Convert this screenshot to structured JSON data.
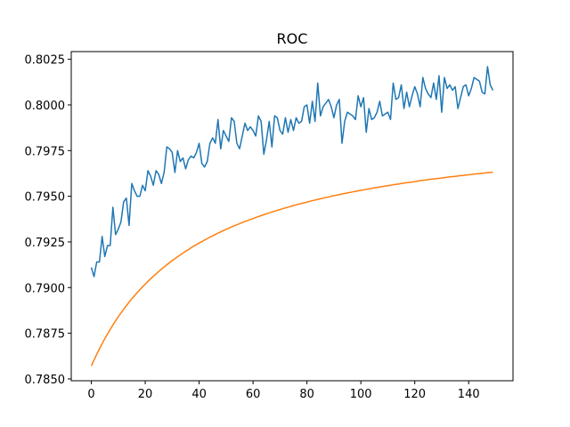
{
  "chart_data": {
    "type": "line",
    "title": "ROC",
    "x": [
      0,
      1,
      2,
      3,
      4,
      5,
      6,
      7,
      8,
      9,
      10,
      11,
      12,
      13,
      14,
      15,
      16,
      17,
      18,
      19,
      20,
      21,
      22,
      23,
      24,
      25,
      26,
      27,
      28,
      29,
      30,
      31,
      32,
      33,
      34,
      35,
      36,
      37,
      38,
      39,
      40,
      41,
      42,
      43,
      44,
      45,
      46,
      47,
      48,
      49,
      50,
      51,
      52,
      53,
      54,
      55,
      56,
      57,
      58,
      59,
      60,
      61,
      62,
      63,
      64,
      65,
      66,
      67,
      68,
      69,
      70,
      71,
      72,
      73,
      74,
      75,
      76,
      77,
      78,
      79,
      80,
      81,
      82,
      83,
      84,
      85,
      86,
      87,
      88,
      89,
      90,
      91,
      92,
      93,
      94,
      95,
      96,
      97,
      98,
      99,
      100,
      101,
      102,
      103,
      104,
      105,
      106,
      107,
      108,
      109,
      110,
      111,
      112,
      113,
      114,
      115,
      116,
      117,
      118,
      119,
      120,
      121,
      122,
      123,
      124,
      125,
      126,
      127,
      128,
      129,
      130,
      131,
      132,
      133,
      134,
      135,
      136,
      137,
      138,
      139,
      140,
      141,
      142,
      143,
      144,
      145,
      146,
      147,
      148,
      149
    ],
    "series": [
      {
        "color": "#1f77b4",
        "values": [
          0.7911,
          0.7906,
          0.7914,
          0.7914,
          0.7928,
          0.7917,
          0.7923,
          0.7923,
          0.7944,
          0.7929,
          0.7932,
          0.7936,
          0.7947,
          0.7949,
          0.7934,
          0.7957,
          0.7953,
          0.795,
          0.795,
          0.7956,
          0.7953,
          0.7964,
          0.7961,
          0.7956,
          0.7964,
          0.7962,
          0.7957,
          0.7963,
          0.7977,
          0.7976,
          0.7974,
          0.7963,
          0.7975,
          0.7969,
          0.7971,
          0.7965,
          0.797,
          0.7972,
          0.7971,
          0.7974,
          0.7979,
          0.7968,
          0.7966,
          0.7969,
          0.7979,
          0.7982,
          0.7979,
          0.7992,
          0.7976,
          0.7986,
          0.7983,
          0.798,
          0.7993,
          0.7991,
          0.7979,
          0.7976,
          0.7983,
          0.799,
          0.7986,
          0.7988,
          0.7986,
          0.7983,
          0.7994,
          0.7991,
          0.7973,
          0.7981,
          0.7991,
          0.7977,
          0.7994,
          0.7993,
          0.7986,
          0.7984,
          0.7993,
          0.7985,
          0.7992,
          0.7986,
          0.7993,
          0.799,
          0.7991,
          0.7999,
          0.8,
          0.799,
          0.8002,
          0.7991,
          0.8012,
          0.7994,
          0.7999,
          0.8001,
          0.8003,
          0.7999,
          0.7993,
          0.8,
          0.8003,
          0.7979,
          0.7991,
          0.7996,
          0.7995,
          0.7994,
          0.7992,
          0.8005,
          0.7999,
          0.8004,
          0.7985,
          0.7998,
          0.7992,
          0.7993,
          0.7996,
          0.8002,
          0.7994,
          0.7995,
          0.7996,
          0.7992,
          0.8012,
          0.8003,
          0.8004,
          0.8011,
          0.7998,
          0.8007,
          0.7999,
          0.8005,
          0.801,
          0.8006,
          0.7999,
          0.8015,
          0.8009,
          0.8006,
          0.8004,
          0.8012,
          0.8003,
          0.8016,
          0.7996,
          0.8015,
          0.8009,
          0.8011,
          0.8008,
          0.801,
          0.7998,
          0.8004,
          0.801,
          0.8011,
          0.8005,
          0.8009,
          0.8015,
          0.8014,
          0.8013,
          0.8007,
          0.8006,
          0.8021,
          0.8011,
          0.8008
        ]
      },
      {
        "color": "#ff7f0e",
        "values": [
          0.78571,
          0.78603,
          0.78635,
          0.78664,
          0.78693,
          0.7872,
          0.78746,
          0.78771,
          0.78795,
          0.78818,
          0.7884,
          0.78861,
          0.78881,
          0.78901,
          0.7892,
          0.78938,
          0.78955,
          0.78972,
          0.78988,
          0.79004,
          0.79019,
          0.79034,
          0.79048,
          0.79062,
          0.79075,
          0.79088,
          0.79101,
          0.79113,
          0.79125,
          0.79136,
          0.79148,
          0.79158,
          0.79169,
          0.79179,
          0.79189,
          0.79199,
          0.79208,
          0.79218,
          0.79227,
          0.79235,
          0.79244,
          0.79252,
          0.7926,
          0.79268,
          0.79276,
          0.79283,
          0.79291,
          0.79298,
          0.79305,
          0.79312,
          0.79319,
          0.79325,
          0.79332,
          0.79338,
          0.79344,
          0.7935,
          0.79356,
          0.79362,
          0.79367,
          0.79373,
          0.79378,
          0.79384,
          0.79389,
          0.79394,
          0.79399,
          0.79404,
          0.79409,
          0.79414,
          0.79418,
          0.79423,
          0.79427,
          0.79432,
          0.79436,
          0.7944,
          0.79445,
          0.79449,
          0.79453,
          0.79457,
          0.79461,
          0.79464,
          0.79468,
          0.79472,
          0.79476,
          0.79479,
          0.79483,
          0.79486,
          0.7949,
          0.79493,
          0.79496,
          0.795,
          0.79503,
          0.79506,
          0.79509,
          0.79512,
          0.79515,
          0.79518,
          0.79521,
          0.79524,
          0.79527,
          0.7953,
          0.79532,
          0.79535,
          0.79538,
          0.7954,
          0.79543,
          0.79546,
          0.79548,
          0.79551,
          0.79553,
          0.79556,
          0.79558,
          0.7956,
          0.79563,
          0.79565,
          0.79567,
          0.7957,
          0.79572,
          0.79574,
          0.79576,
          0.79578,
          0.7958,
          0.79583,
          0.79585,
          0.79587,
          0.79589,
          0.79591,
          0.79593,
          0.79595,
          0.79596,
          0.79598,
          0.796,
          0.79602,
          0.79604,
          0.79606,
          0.79608,
          0.79609,
          0.79611,
          0.79613,
          0.79614,
          0.79616,
          0.79618,
          0.79619,
          0.79621,
          0.79623,
          0.79624,
          0.79626,
          0.79627,
          0.79629,
          0.7963,
          0.79632
        ]
      }
    ],
    "xlim": [
      -7.45,
      156.45
    ],
    "xticks": [
      0,
      20,
      40,
      60,
      80,
      100,
      120,
      140
    ],
    "ylim": [
      0.7849,
      0.80292
    ],
    "yticks": [
      {
        "value": 0.785,
        "label": "0.7850"
      },
      {
        "value": 0.7875,
        "label": "0.7875"
      },
      {
        "value": 0.79,
        "label": "0.7900"
      },
      {
        "value": 0.7925,
        "label": "0.7925"
      },
      {
        "value": 0.795,
        "label": "0.7950"
      },
      {
        "value": 0.7975,
        "label": "0.7975"
      },
      {
        "value": 0.8,
        "label": "0.8000"
      },
      {
        "value": 0.8025,
        "label": "0.8025"
      }
    ]
  }
}
